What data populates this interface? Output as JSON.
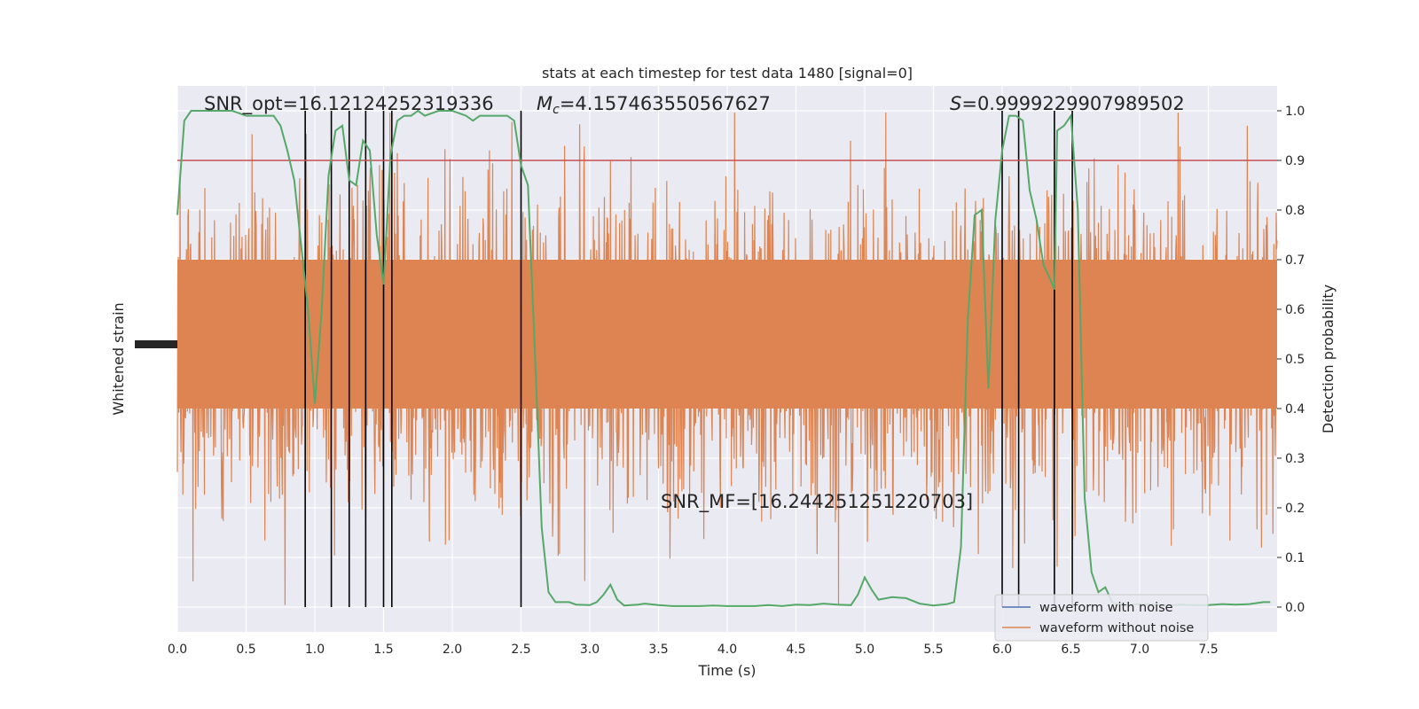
{
  "chart_data": {
    "type": "line",
    "title": "stats at each timestep for test data 1480 [signal=0]",
    "xlabel": "Time (s)",
    "ylabel_left": "Whitened strain",
    "ylabel_right": "Detection probability",
    "xlim": [
      0,
      8
    ],
    "ylim_right": [
      -0.05,
      1.05
    ],
    "x_ticks": [
      "0.0",
      "0.5",
      "1.0",
      "1.5",
      "2.0",
      "2.5",
      "3.0",
      "3.5",
      "4.0",
      "4.5",
      "5.0",
      "5.5",
      "6.0",
      "6.5",
      "7.0",
      "7.5"
    ],
    "y_ticks_right": [
      "0.0",
      "0.1",
      "0.2",
      "0.3",
      "0.4",
      "0.5",
      "0.6",
      "0.7",
      "0.8",
      "0.9",
      "1.0"
    ],
    "grid": true,
    "threshold": 0.9,
    "annotations": {
      "snr_opt": "SNR_opt=16.12124252319336",
      "mc_symbol": "M",
      "mc_sub": "c",
      "mc_value": "=4.157463550567627",
      "s_symbol": "S",
      "s_value": "=0.9999229907989502",
      "snr_mf": "SNR_MF=[16.244251251220703]"
    },
    "vlines_x": [
      0.93,
      1.12,
      1.25,
      1.37,
      1.5,
      1.56,
      2.5,
      6.0,
      6.12,
      6.38,
      6.51
    ],
    "series": [
      {
        "name": "waveform with noise",
        "color": "#4c72b0"
      },
      {
        "name": "waveform without noise",
        "color": "#dd8452"
      }
    ],
    "detection_probability": {
      "color": "#55a868",
      "x": [
        0.0,
        0.05,
        0.1,
        0.15,
        0.2,
        0.3,
        0.4,
        0.5,
        0.6,
        0.7,
        0.75,
        0.8,
        0.85,
        0.9,
        0.95,
        1.0,
        1.05,
        1.1,
        1.15,
        1.2,
        1.25,
        1.3,
        1.35,
        1.4,
        1.45,
        1.5,
        1.55,
        1.6,
        1.65,
        1.7,
        1.75,
        1.8,
        1.9,
        2.0,
        2.1,
        2.15,
        2.2,
        2.3,
        2.4,
        2.45,
        2.5,
        2.55,
        2.6,
        2.65,
        2.7,
        2.75,
        2.8,
        2.85,
        2.9,
        3.0,
        3.05,
        3.1,
        3.15,
        3.2,
        3.25,
        3.3,
        3.35,
        3.4,
        3.5,
        3.6,
        3.7,
        3.8,
        3.9,
        4.0,
        4.1,
        4.2,
        4.3,
        4.4,
        4.5,
        4.6,
        4.7,
        4.8,
        4.9,
        4.95,
        5.0,
        5.05,
        5.1,
        5.2,
        5.3,
        5.4,
        5.5,
        5.6,
        5.65,
        5.7,
        5.75,
        5.8,
        5.85,
        5.9,
        5.95,
        6.0,
        6.05,
        6.1,
        6.15,
        6.2,
        6.25,
        6.3,
        6.35,
        6.38,
        6.4,
        6.45,
        6.5,
        6.55,
        6.6,
        6.65,
        6.7,
        6.75,
        6.8,
        6.85,
        6.9,
        7.0,
        7.1,
        7.2,
        7.3,
        7.4,
        7.5,
        7.6,
        7.7,
        7.8,
        7.9,
        7.95
      ],
      "y": [
        0.79,
        0.98,
        1.0,
        1.0,
        1.0,
        1.0,
        1.0,
        0.99,
        0.99,
        0.99,
        0.97,
        0.92,
        0.86,
        0.73,
        0.6,
        0.41,
        0.6,
        0.87,
        0.96,
        0.97,
        0.86,
        0.85,
        0.94,
        0.92,
        0.75,
        0.65,
        0.91,
        0.98,
        0.99,
        0.99,
        1.0,
        0.99,
        1.0,
        1.0,
        0.99,
        0.98,
        0.99,
        0.99,
        0.99,
        0.98,
        0.89,
        0.85,
        0.52,
        0.16,
        0.03,
        0.01,
        0.01,
        0.01,
        0.005,
        0.004,
        0.01,
        0.025,
        0.045,
        0.015,
        0.003,
        0.004,
        0.005,
        0.007,
        0.004,
        0.002,
        0.002,
        0.002,
        0.003,
        0.002,
        0.002,
        0.002,
        0.004,
        0.002,
        0.005,
        0.004,
        0.007,
        0.005,
        0.004,
        0.025,
        0.06,
        0.035,
        0.015,
        0.02,
        0.018,
        0.007,
        0.003,
        0.006,
        0.01,
        0.12,
        0.58,
        0.79,
        0.8,
        0.44,
        0.78,
        0.92,
        0.99,
        0.99,
        0.98,
        0.84,
        0.78,
        0.69,
        0.66,
        0.64,
        0.96,
        0.97,
        0.99,
        0.8,
        0.22,
        0.07,
        0.03,
        0.04,
        0.01,
        0.005,
        0.004,
        0.006,
        0.005,
        0.003,
        0.005,
        0.004,
        0.004,
        0.006,
        0.005,
        0.006,
        0.01,
        0.01
      ]
    }
  }
}
